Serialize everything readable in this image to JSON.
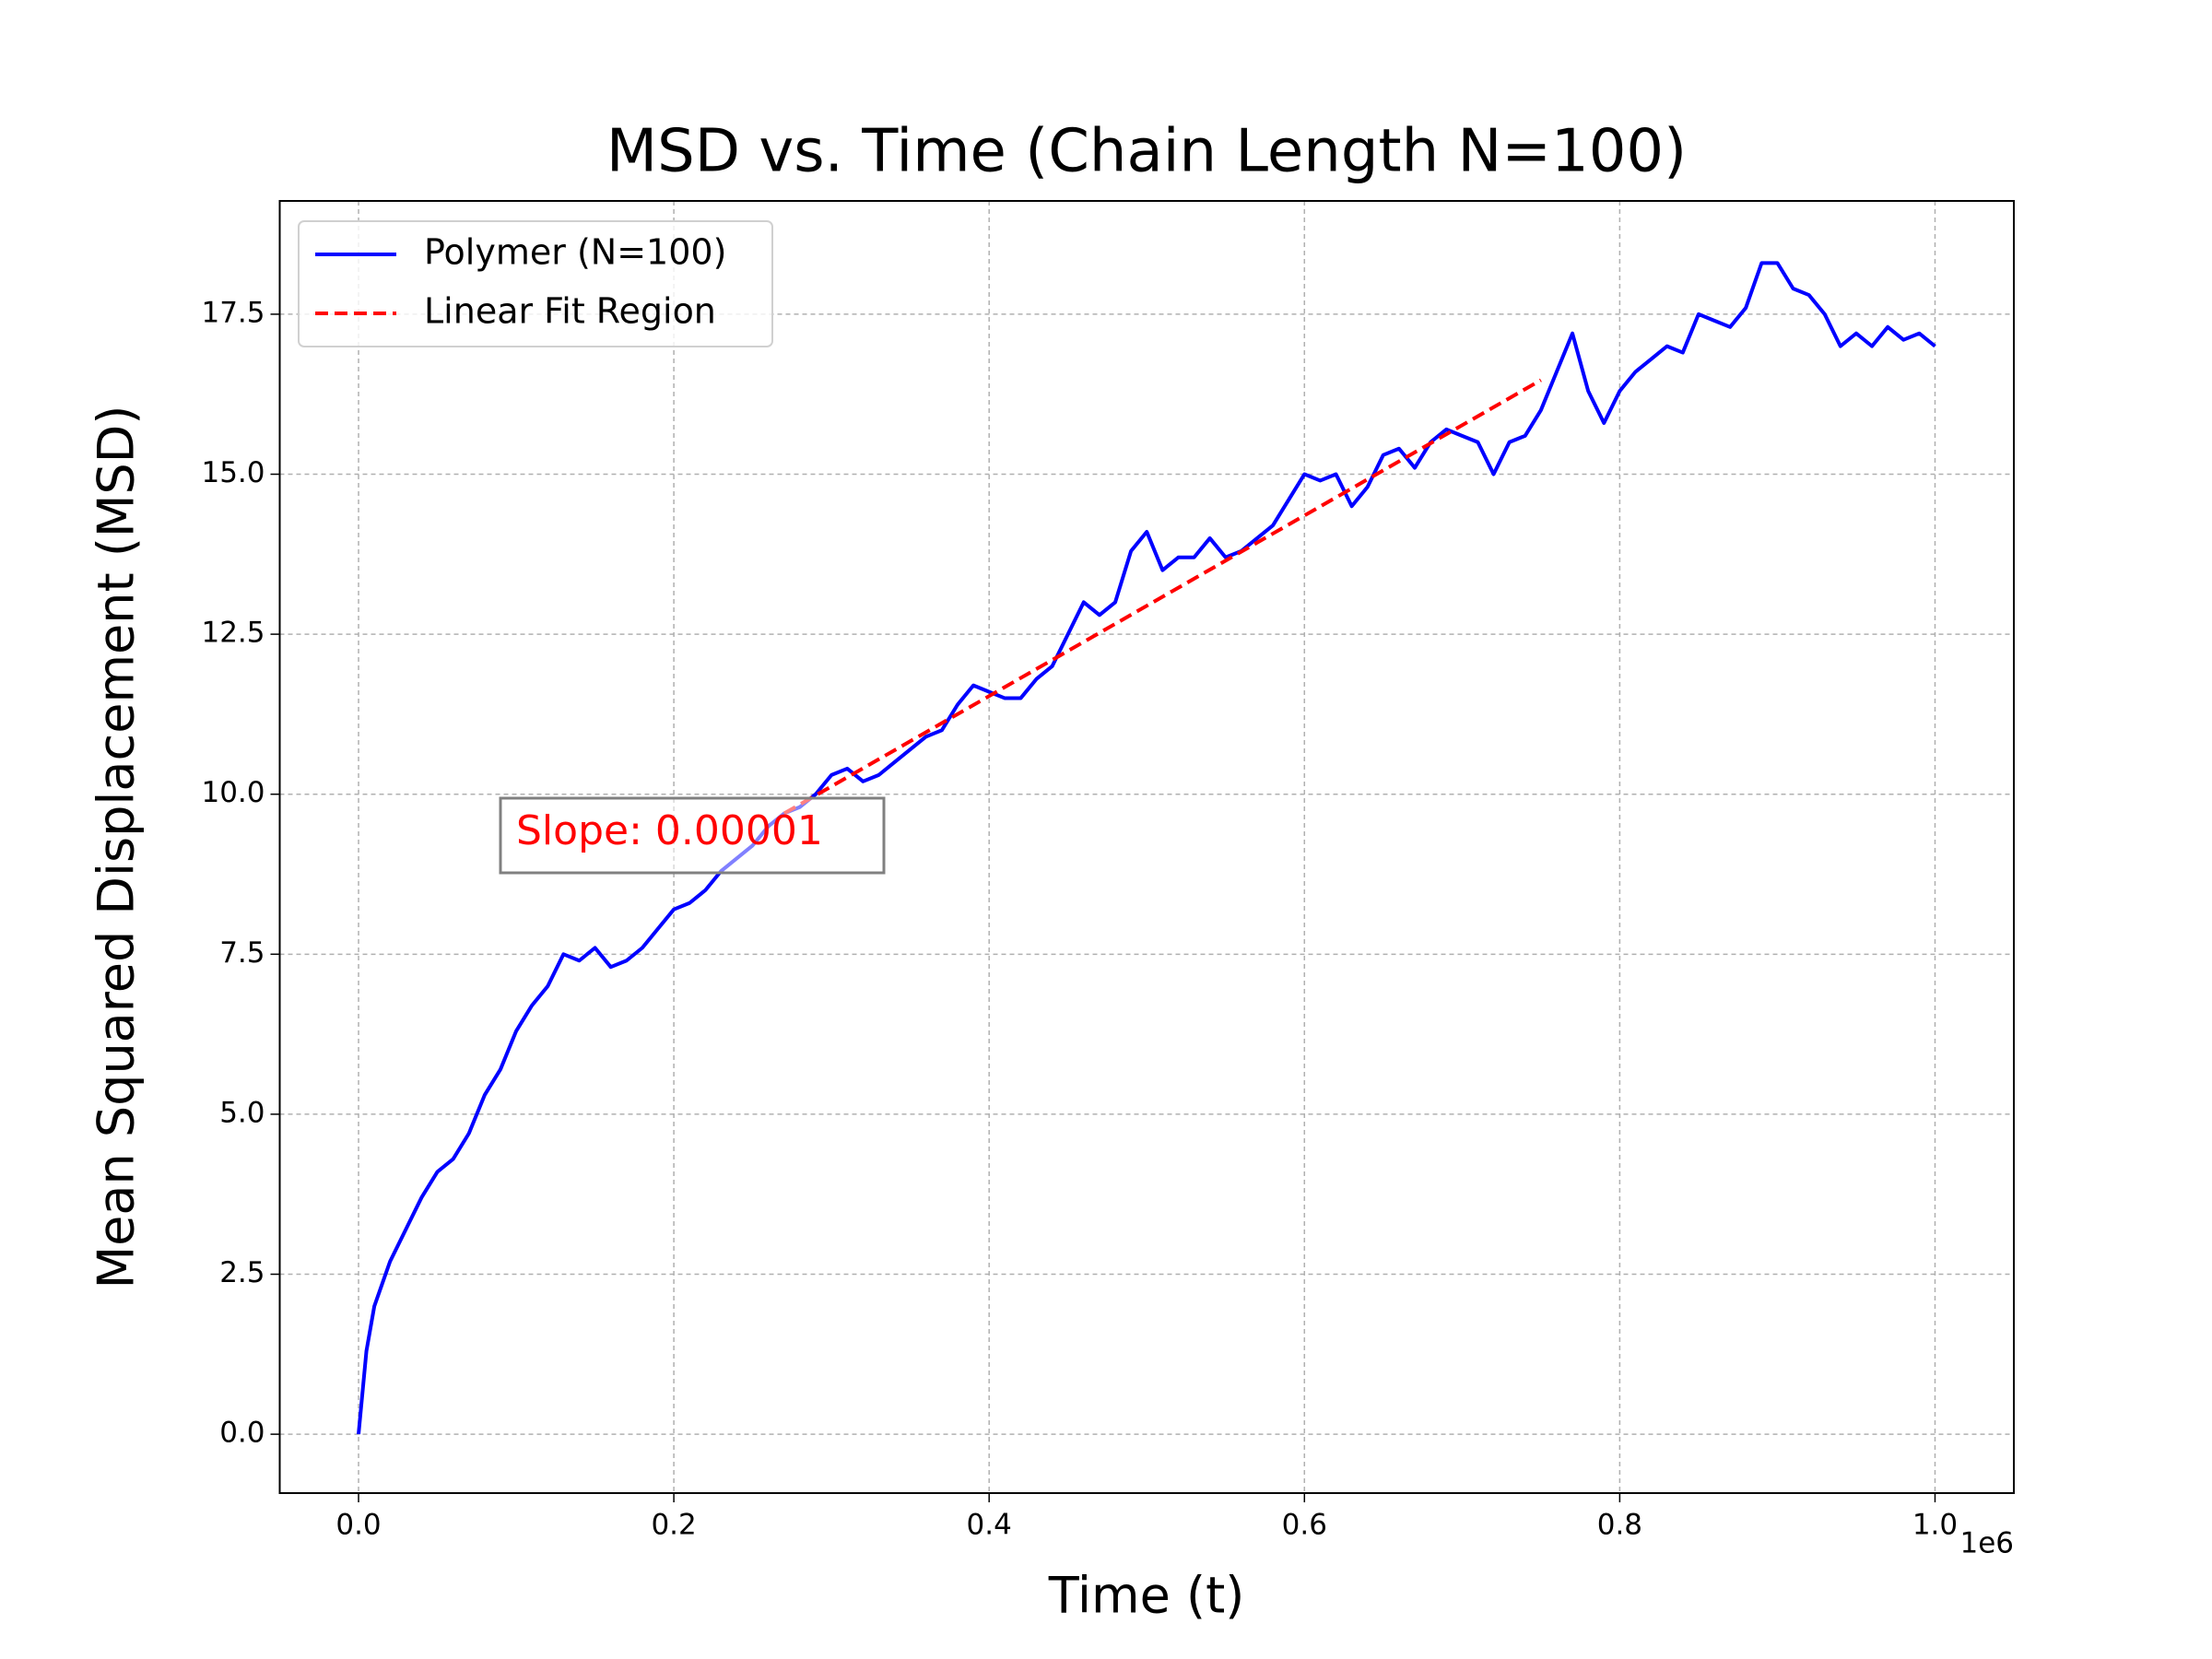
{
  "chart_data": {
    "type": "line",
    "title": "MSD vs. Time (Chain Length N=100)",
    "x_label": "Time (t)",
    "y_label": "Mean Squared Displacement (MSD)",
    "x_offset_label": "1e6",
    "xlim": [
      -0.05,
      1.05
    ],
    "ylim": [
      -0.92,
      19.27
    ],
    "xticks": [
      {
        "value": 0,
        "label": "0.0"
      },
      0.2,
      0.4,
      0.6,
      0.8,
      {
        "value": 1,
        "label": "1.0"
      }
    ],
    "yticks": [
      {
        "value": 0,
        "label": "0.0"
      },
      2.5,
      {
        "value": 5,
        "label": "5.0"
      },
      7.5,
      {
        "value": 10,
        "label": "10.0"
      },
      12.5,
      {
        "value": 15,
        "label": "15.0"
      },
      17.5
    ],
    "grid": true,
    "legend": "upper left",
    "annotation": "Slope: 0.00001",
    "series": [
      {
        "name": "Polymer (N=100)",
        "color": "#0000ff",
        "style": "solid",
        "x": [
          0,
          0.005,
          0.01,
          0.02,
          0.03,
          0.04,
          0.05,
          0.06,
          0.07,
          0.08,
          0.09,
          0.1,
          0.11,
          0.12,
          0.13,
          0.14,
          0.15,
          0.16,
          0.17,
          0.18,
          0.19,
          0.2,
          0.21,
          0.22,
          0.23,
          0.24,
          0.25,
          0.26,
          0.27,
          0.28,
          0.29,
          0.3,
          0.31,
          0.32,
          0.33,
          0.34,
          0.35,
          0.36,
          0.37,
          0.38,
          0.39,
          0.4,
          0.41,
          0.42,
          0.43,
          0.44,
          0.45,
          0.46,
          0.47,
          0.48,
          0.49,
          0.5,
          0.51,
          0.52,
          0.53,
          0.54,
          0.55,
          0.56,
          0.57,
          0.58,
          0.59,
          0.6,
          0.61,
          0.62,
          0.63,
          0.64,
          0.65,
          0.66,
          0.67,
          0.68,
          0.69,
          0.7,
          0.71,
          0.72,
          0.73,
          0.74,
          0.75,
          0.76,
          0.77,
          0.78,
          0.79,
          0.8,
          0.81,
          0.82,
          0.83,
          0.84,
          0.85,
          0.86,
          0.87,
          0.88,
          0.89,
          0.9,
          0.91,
          0.92,
          0.93,
          0.94,
          0.95,
          0.96,
          0.97,
          0.98,
          0.99,
          1.0
        ],
        "values": [
          0,
          1.3,
          2.0,
          2.7,
          3.2,
          3.7,
          4.1,
          4.3,
          4.7,
          5.3,
          5.7,
          6.3,
          6.7,
          7.0,
          7.5,
          7.4,
          7.6,
          7.3,
          7.4,
          7.6,
          7.9,
          8.2,
          8.3,
          8.5,
          8.8,
          9.0,
          9.2,
          9.5,
          9.7,
          9.8,
          10.0,
          10.3,
          10.4,
          10.2,
          10.3,
          10.5,
          10.7,
          10.9,
          11.0,
          11.4,
          11.7,
          11.6,
          11.5,
          11.5,
          11.8,
          12.0,
          12.5,
          13.0,
          12.8,
          13.0,
          13.8,
          14.1,
          13.5,
          13.7,
          13.7,
          14.0,
          13.7,
          13.8,
          14.0,
          14.2,
          14.6,
          15.0,
          14.9,
          15.0,
          14.5,
          14.8,
          15.3,
          15.4,
          15.1,
          15.5,
          15.7,
          15.6,
          15.5,
          15.0,
          15.5,
          15.6,
          16.0,
          16.6,
          17.2,
          16.3,
          15.8,
          16.3,
          16.6,
          16.8,
          17.0,
          16.9,
          17.5,
          17.4,
          17.3,
          17.6,
          18.3,
          18.3,
          17.9,
          17.8,
          17.5,
          17.0,
          17.2,
          17.0,
          17.3,
          17.1,
          17.2,
          17.0
        ]
      },
      {
        "name": "Linear Fit Region",
        "color": "#ff0000",
        "style": "dashed",
        "x": [
          0.27,
          0.75
        ],
        "values": [
          9.7,
          16.47
        ]
      }
    ]
  }
}
